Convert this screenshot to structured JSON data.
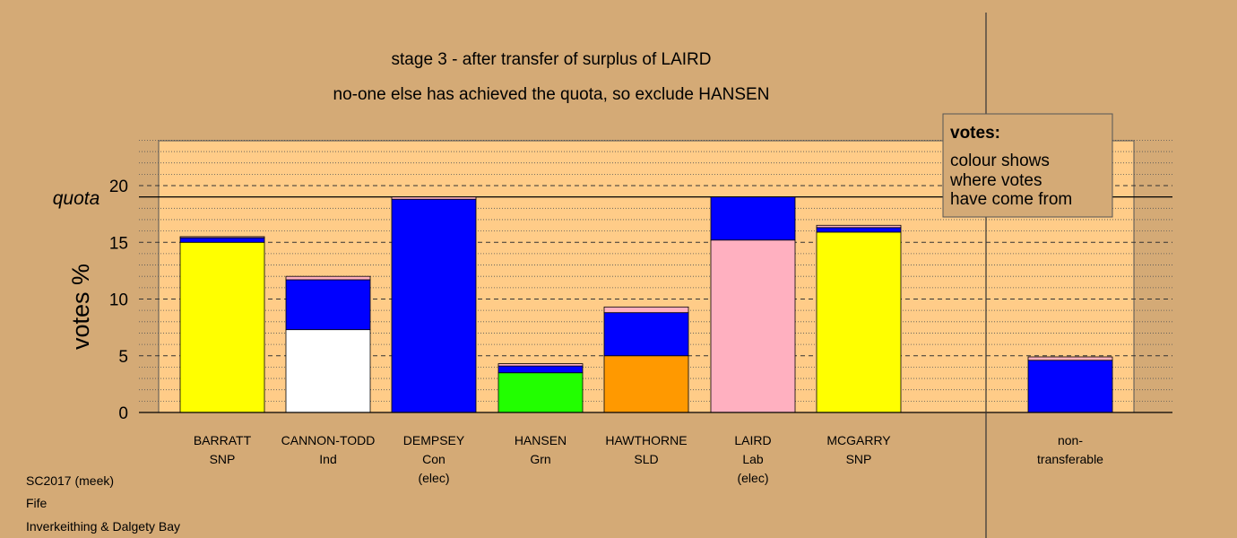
{
  "titles": {
    "line1": "stage 3 - after transfer of surplus of LAIRD",
    "line2": "no-one else has achieved the quota, so exclude HANSEN"
  },
  "legend": {
    "heading": "votes:",
    "line1": "colour shows",
    "line2": "where votes",
    "line3": "have come from"
  },
  "footer": {
    "line1": "SC2017 (meek)",
    "line2": "Fife",
    "line3": "Inverkeithing & Dalgety Bay"
  },
  "colors": {
    "background": "#d4aa76",
    "plot_panel": "#ffcc88",
    "snp": "#ffff00",
    "ind": "#ffffff",
    "con": "#0000ff",
    "grn": "#22ff00",
    "sld": "#ff9900",
    "lab": "#ffb0c0"
  },
  "chart_data": {
    "type": "bar",
    "stacked": true,
    "ylabel": "votes %",
    "ylim": [
      0,
      24
    ],
    "yticks": [
      0,
      5,
      10,
      15,
      20
    ],
    "quota": {
      "label": "quota",
      "value": 19.0
    },
    "grid": true,
    "legend_position": "top-right",
    "categories": [
      {
        "name": "BARRATT",
        "party": "SNP",
        "note": "",
        "segments": [
          {
            "source": "SNP",
            "color": "#ffff00",
            "value": 15.0
          },
          {
            "source": "Con",
            "color": "#0000ff",
            "value": 0.4
          },
          {
            "source": "Lab",
            "color": "#ffb0c0",
            "value": 0.1
          }
        ]
      },
      {
        "name": "CANNON-TODD",
        "party": "Ind",
        "note": "",
        "segments": [
          {
            "source": "Ind",
            "color": "#ffffff",
            "value": 7.3
          },
          {
            "source": "Con",
            "color": "#0000ff",
            "value": 4.4
          },
          {
            "source": "Lab",
            "color": "#ffb0c0",
            "value": 0.3
          }
        ]
      },
      {
        "name": "DEMPSEY",
        "party": "Con",
        "note": "(elec)",
        "segments": [
          {
            "source": "Con",
            "color": "#0000ff",
            "value": 18.8
          },
          {
            "source": "Lab",
            "color": "#ffb0c0",
            "value": 0.2
          }
        ]
      },
      {
        "name": "HANSEN",
        "party": "Grn",
        "note": "",
        "segments": [
          {
            "source": "Grn",
            "color": "#22ff00",
            "value": 3.5
          },
          {
            "source": "Con",
            "color": "#0000ff",
            "value": 0.6
          },
          {
            "source": "Lab",
            "color": "#ffb0c0",
            "value": 0.2
          }
        ]
      },
      {
        "name": "HAWTHORNE",
        "party": "SLD",
        "note": "",
        "segments": [
          {
            "source": "SLD",
            "color": "#ff9900",
            "value": 5.0
          },
          {
            "source": "Con",
            "color": "#0000ff",
            "value": 3.8
          },
          {
            "source": "Lab",
            "color": "#ffb0c0",
            "value": 0.5
          }
        ]
      },
      {
        "name": "LAIRD",
        "party": "Lab",
        "note": "(elec)",
        "segments": [
          {
            "source": "Lab",
            "color": "#ffb0c0",
            "value": 15.2
          },
          {
            "source": "Con",
            "color": "#0000ff",
            "value": 3.8
          }
        ]
      },
      {
        "name": "MCGARRY",
        "party": "SNP",
        "note": "",
        "segments": [
          {
            "source": "SNP",
            "color": "#ffff00",
            "value": 15.9
          },
          {
            "source": "Con",
            "color": "#0000ff",
            "value": 0.4
          },
          {
            "source": "Lab",
            "color": "#ffb0c0",
            "value": 0.2
          }
        ]
      },
      {
        "name": "non-",
        "party": "transferable",
        "note": "",
        "separate": true,
        "segments": [
          {
            "source": "Con",
            "color": "#0000ff",
            "value": 4.6
          },
          {
            "source": "Lab",
            "color": "#ffb0c0",
            "value": 0.3
          }
        ]
      }
    ]
  }
}
